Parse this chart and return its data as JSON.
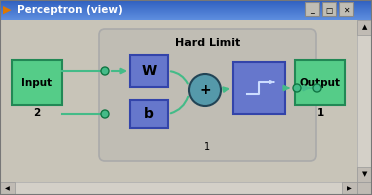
{
  "title": "Perceptron (view)",
  "window_bg": "#d4d0c8",
  "content_bg": "#c8c4b8",
  "titlebar_color1": "#3060c0",
  "titlebar_color2": "#6090e0",
  "title_text_color": "#ffffff",
  "green_box_color": "#55cc88",
  "green_box_edge": "#228855",
  "blue_box_color": "#6677cc",
  "blue_box_edge": "#3344aa",
  "sum_circle_color": "#5599aa",
  "sum_circle_edge": "#224455",
  "tf_box_color": "#6677cc",
  "tf_box_edge": "#3344aa",
  "hl_box_bg": "#c0bdb4",
  "hl_box_edge": "#aaaaaa",
  "arrow_color": "#44bb88",
  "circle_color": "#44bb88",
  "circle_edge": "#117744",
  "scrollbar_bg": "#d4d0c8",
  "scrollbar_btn": "#c0bbb4",
  "labels": {
    "input": "Input",
    "output": "Output",
    "hard_limit": "Hard Limit",
    "w": "W",
    "b": "b",
    "plus": "+",
    "two": "2",
    "one_neuron": "1",
    "one_output": "1"
  },
  "fig_w": 3.72,
  "fig_h": 1.95,
  "dpi": 100
}
